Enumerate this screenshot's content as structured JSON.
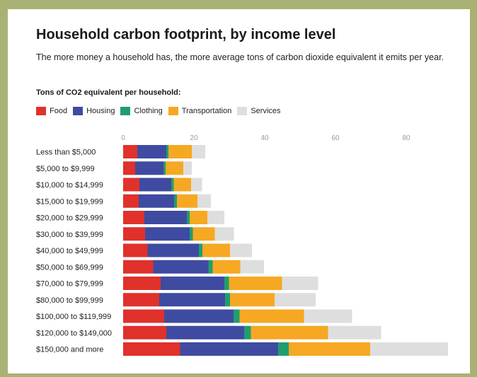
{
  "header": {
    "title": "Household carbon footprint, by income level",
    "subtitle": "The more money a household has, the more average tons of carbon dioxide equivalent it emits per year.",
    "units_label": "Tons of CO2 equivalent per household:"
  },
  "chart_data": {
    "type": "bar",
    "orientation": "horizontal",
    "stacked": true,
    "title": "Household carbon footprint, by income level",
    "subtitle": "The more money a household has, the more average tons of carbon dioxide equivalent it emits per year.",
    "xlabel": "Tons of CO2 equivalent per household:",
    "ylabel": "",
    "xlim": [
      0,
      92
    ],
    "xticks": [
      0,
      20,
      40,
      60,
      80
    ],
    "grid": false,
    "legend": "top-left",
    "categories": [
      "Less than $5,000",
      "$5,000 to $9,999",
      "$10,000 to $14,999",
      "$15,000 to $19,999",
      "$20,000 to $29,999",
      "$30,000 to $39,999",
      "$40,000 to $49,999",
      "$50,000 to $69,999",
      "$70,000 to $79,999",
      "$80,000 to $99,999",
      "$100,000 to $119,999",
      "$120,000 to $149,000",
      "$150,000 and more"
    ],
    "series": [
      {
        "name": "Food",
        "color": "#e0312b",
        "values": [
          4.0,
          3.4,
          4.6,
          4.4,
          6.0,
          6.2,
          6.9,
          8.5,
          10.6,
          10.2,
          11.6,
          12.2,
          16.1
        ]
      },
      {
        "name": "Housing",
        "color": "#3e4ba1",
        "values": [
          8.2,
          8.0,
          9.0,
          10.0,
          12.0,
          12.6,
          14.5,
          15.6,
          18.0,
          18.6,
          19.6,
          22.0,
          27.7
        ]
      },
      {
        "name": "Clothing",
        "color": "#1f9e6e",
        "values": [
          0.6,
          0.6,
          0.7,
          0.8,
          0.8,
          0.9,
          1.0,
          1.2,
          1.3,
          1.4,
          1.7,
          1.9,
          3.0
        ]
      },
      {
        "name": "Transportation",
        "color": "#f6a823",
        "values": [
          6.6,
          5.0,
          4.9,
          5.8,
          5.0,
          6.2,
          7.8,
          7.8,
          15.0,
          12.6,
          18.2,
          21.8,
          23.0
        ]
      },
      {
        "name": "Services",
        "color": "#dedede",
        "values": [
          3.8,
          2.4,
          3.1,
          3.8,
          4.8,
          5.4,
          6.2,
          6.7,
          10.2,
          11.6,
          13.6,
          15.0,
          22.0
        ]
      }
    ]
  }
}
